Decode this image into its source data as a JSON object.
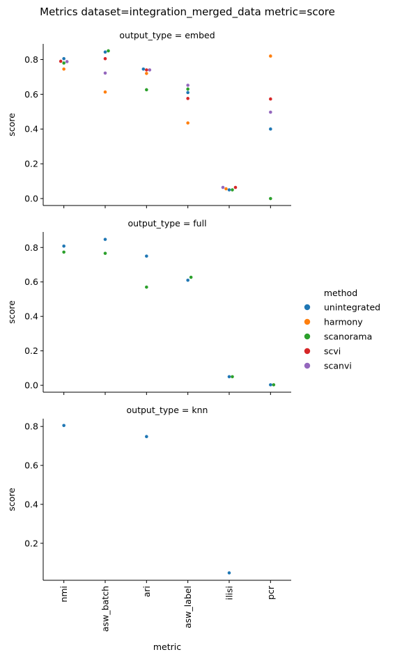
{
  "figure": {
    "title": "Metrics dataset=integration_merged_data metric=score"
  },
  "legend": {
    "title": "method",
    "placement": "right",
    "entries": [
      {
        "name": "unintegrated",
        "color": "#1f77b4"
      },
      {
        "name": "harmony",
        "color": "#ff7f0e"
      },
      {
        "name": "scanorama",
        "color": "#2ca02c"
      },
      {
        "name": "scvi",
        "color": "#d62728"
      },
      {
        "name": "scanvi",
        "color": "#9467bd"
      }
    ]
  },
  "chart_data": [
    {
      "type": "scatter",
      "title": "output_type = embed",
      "ylabel": "score",
      "xlabel": "",
      "categories": [
        "nmi",
        "asw_batch",
        "ari",
        "asw_label",
        "ilisi",
        "pcr"
      ],
      "ylim": [
        -0.04,
        0.89
      ],
      "yticks": [
        "0.0",
        "0.2",
        "0.4",
        "0.6",
        "0.8"
      ],
      "show_xticklabels": false,
      "series": [
        {
          "name": "unintegrated",
          "values": [
            0.805,
            0.843,
            0.745,
            0.61,
            0.05,
            0.4
          ]
        },
        {
          "name": "harmony",
          "values": [
            0.745,
            0.613,
            0.72,
            0.435,
            0.056,
            0.82
          ]
        },
        {
          "name": "scanorama",
          "values": [
            0.78,
            0.85,
            0.626,
            0.63,
            0.05,
            0.0
          ]
        },
        {
          "name": "scvi",
          "values": [
            0.79,
            0.805,
            0.74,
            0.576,
            0.064,
            0.573
          ]
        },
        {
          "name": "scanvi",
          "values": [
            0.788,
            0.722,
            0.74,
            0.652,
            0.064,
            0.497
          ]
        }
      ]
    },
    {
      "type": "scatter",
      "title": "output_type = full",
      "ylabel": "score",
      "xlabel": "",
      "categories": [
        "nmi",
        "asw_batch",
        "ari",
        "asw_label",
        "ilisi",
        "pcr"
      ],
      "ylim": [
        -0.04,
        0.89
      ],
      "yticks": [
        "0.0",
        "0.2",
        "0.4",
        "0.6",
        "0.8"
      ],
      "show_xticklabels": false,
      "series": [
        {
          "name": "unintegrated",
          "values": [
            0.808,
            0.847,
            0.75,
            0.61,
            0.05,
            0.003
          ]
        },
        {
          "name": "scanorama",
          "values": [
            0.773,
            0.766,
            0.57,
            0.627,
            0.05,
            0.003
          ]
        }
      ]
    },
    {
      "type": "scatter",
      "title": "output_type = knn",
      "ylabel": "score",
      "xlabel": "metric",
      "categories": [
        "nmi",
        "asw_batch",
        "ari",
        "asw_label",
        "ilisi",
        "pcr"
      ],
      "ylim": [
        0.01,
        0.84
      ],
      "yticks": [
        "0.2",
        "0.4",
        "0.6",
        "0.8"
      ],
      "show_xticklabels": true,
      "series": [
        {
          "name": "unintegrated",
          "values": [
            0.805,
            null,
            0.748,
            null,
            0.048,
            null
          ]
        }
      ]
    }
  ]
}
